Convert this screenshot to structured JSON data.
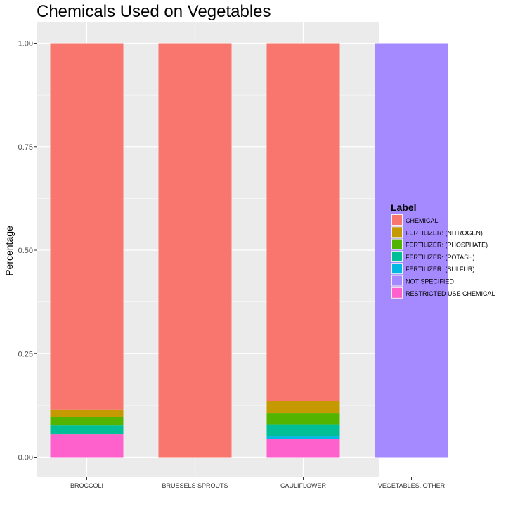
{
  "chart_data": {
    "type": "bar",
    "stacked": true,
    "title": "Chemicals Used on Vegetables",
    "xlabel": "",
    "ylabel": "Percentage",
    "ylim": [
      0,
      1
    ],
    "yticks": [
      "0.00",
      "0.25",
      "0.50",
      "0.75",
      "1.00"
    ],
    "grid": true,
    "legend_title": "Label",
    "legend_position": "right",
    "categories": [
      "BROCCOLI",
      "BRUSSELS SPROUTS",
      "CAULIFLOWER",
      "VEGETABLES, OTHER"
    ],
    "series": [
      {
        "name": "RESTRICTED USE CHEMICAL",
        "color": "#FF61CC",
        "values": [
          0.055,
          0,
          0.045,
          0
        ]
      },
      {
        "name": "FERTILIZER: (SULFUR)",
        "color": "#00B9E3",
        "values": [
          0,
          0,
          0.005,
          0
        ]
      },
      {
        "name": "FERTILIZER: (POTASH)",
        "color": "#00BF96",
        "values": [
          0.022,
          0,
          0.028,
          0
        ]
      },
      {
        "name": "FERTILIZER: (PHOSPHATE)",
        "color": "#53B400",
        "values": [
          0.02,
          0,
          0.028,
          0
        ]
      },
      {
        "name": "FERTILIZER: (NITROGEN)",
        "color": "#C49A00",
        "values": [
          0.018,
          0,
          0.03,
          0
        ]
      },
      {
        "name": "CHEMICAL",
        "color": "#F8766D",
        "values": [
          0.885,
          1.0,
          0.864,
          0
        ]
      },
      {
        "name": "NOT SPECIFIED",
        "color": "#A58AFF",
        "values": [
          0,
          0,
          0,
          1.0
        ]
      }
    ],
    "legend_order": [
      "CHEMICAL",
      "FERTILIZER: (NITROGEN)",
      "FERTILIZER: (PHOSPHATE)",
      "FERTILIZER: (POTASH)",
      "FERTILIZER: (SULFUR)",
      "NOT SPECIFIED",
      "RESTRICTED USE CHEMICAL"
    ]
  }
}
